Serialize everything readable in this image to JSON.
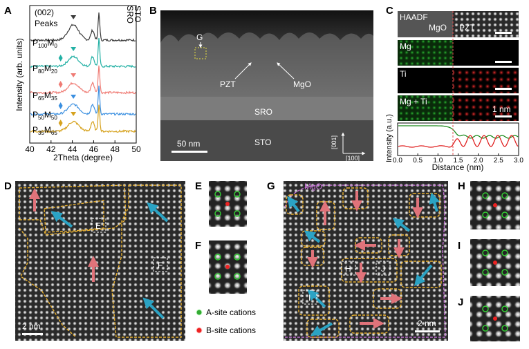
{
  "panel_labels": [
    "A",
    "B",
    "C",
    "D",
    "E",
    "F",
    "G",
    "H",
    "I",
    "J"
  ],
  "panel_a": {
    "inset_labels": [
      "(002)",
      "Peaks"
    ],
    "peak_labels": [
      "SRO",
      "STO"
    ],
    "samples": [
      [
        "P",
        "100",
        "M",
        "0"
      ],
      [
        "P",
        "80",
        "M",
        "20"
      ],
      [
        "P",
        "65",
        "M",
        "35"
      ],
      [
        "P",
        "50",
        "M",
        "50"
      ],
      [
        "P",
        "35",
        "M",
        "65"
      ]
    ],
    "ylabel": "Intensity (arb. units)",
    "xlabel": "2Theta (degree)",
    "xlim": [
      40,
      50
    ],
    "xticks": [
      40,
      42,
      44,
      46,
      48,
      50
    ]
  },
  "panel_b": {
    "box_label": "G",
    "labels": [
      "PZT",
      "MgO",
      "SRO",
      "STO"
    ],
    "scale_bar": "50 nm",
    "directions": [
      "[001]",
      "[100]"
    ]
  },
  "panel_c": {
    "rows": [
      "HAADF",
      "Mg",
      "Ti",
      "Mg + Ti"
    ],
    "region_labels": [
      "MgO",
      "PZT"
    ],
    "scale_bar": "1 nm",
    "ylabel": "Intensity (a.u.)",
    "xlabel": "Distance (nm)",
    "xlim": [
      0,
      3
    ],
    "xticks": [
      {
        "value": 0,
        "label": "0.0"
      },
      0.5,
      {
        "value": 1,
        "label": "1.0"
      },
      1.5,
      {
        "value": 2,
        "label": "2.0"
      },
      2.5,
      {
        "value": 3,
        "label": "3.0"
      }
    ]
  },
  "panel_d": {
    "box_labels": [
      "E",
      "F"
    ],
    "scale_bar": "2 nm"
  },
  "legend": [
    "A-site cations",
    "B-site cations"
  ],
  "panel_g": {
    "region_label": "MgO",
    "box_labels": [
      "H",
      "J",
      "I"
    ],
    "scale_bar": "2 nm"
  }
}
